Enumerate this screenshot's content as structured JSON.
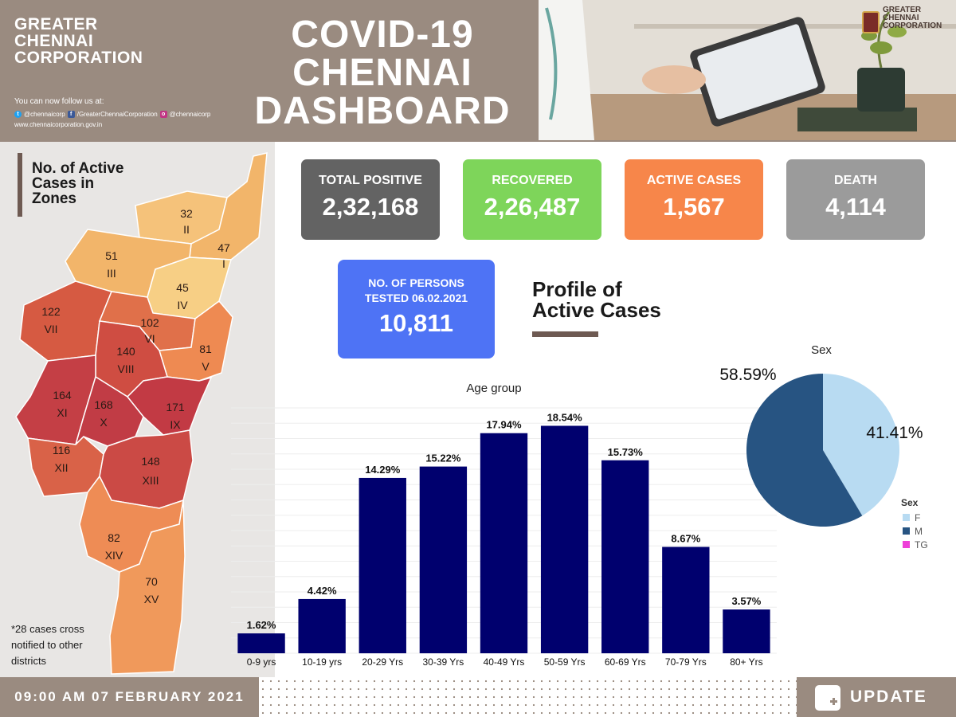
{
  "header": {
    "brand": "GREATER\nCHENNAI\nCORPORATION",
    "follow_text": "You can now follow us at:",
    "twitter": "@chennaicorp",
    "facebook": "/GreaterChennaiCorporation",
    "instagram": "@chennaicorp",
    "website": "www.chennaicorporation.gov.in",
    "title": "COVID-19\nCHENNAI\nDASHBOARD",
    "logo_text": "GREATER\nCHENNAI\nCORPORATION"
  },
  "map": {
    "title": "No. of Active\nCases in\nZones",
    "footnote": "*28 cases cross\nnotified to other\ndistricts",
    "zones": [
      {
        "roman": "I",
        "cases": "47",
        "color": "#f2b56a"
      },
      {
        "roman": "II",
        "cases": "32",
        "color": "#f5c27a"
      },
      {
        "roman": "III",
        "cases": "51",
        "color": "#f2b56a"
      },
      {
        "roman": "IV",
        "cases": "45",
        "color": "#f7cf85"
      },
      {
        "roman": "V",
        "cases": "81",
        "color": "#ee8a52"
      },
      {
        "roman": "VI",
        "cases": "102",
        "color": "#e0704a"
      },
      {
        "roman": "VII",
        "cases": "122",
        "color": "#d65a42"
      },
      {
        "roman": "VIII",
        "cases": "140",
        "color": "#cf4d42"
      },
      {
        "roman": "IX",
        "cases": "171",
        "color": "#c23a44"
      },
      {
        "roman": "X",
        "cases": "168",
        "color": "#c13c45"
      },
      {
        "roman": "XI",
        "cases": "164",
        "color": "#c43f45"
      },
      {
        "roman": "XII",
        "cases": "116",
        "color": "#d96248"
      },
      {
        "roman": "XIII",
        "cases": "148",
        "color": "#cb4a45"
      },
      {
        "roman": "XIV",
        "cases": "82",
        "color": "#ee8c55"
      },
      {
        "roman": "XV",
        "cases": "70",
        "color": "#f0995b"
      }
    ]
  },
  "stats": {
    "total_positive": {
      "label": "TOTAL POSITIVE",
      "value": "2,32,168"
    },
    "recovered": {
      "label": "RECOVERED",
      "value": "2,26,487"
    },
    "active": {
      "label": "ACTIVE CASES",
      "value": "1,567"
    },
    "death": {
      "label": "DEATH",
      "value": "4,114"
    },
    "tested": {
      "label": "NO. OF PERSONS\nTESTED 06.02.2021",
      "value": "10,811"
    }
  },
  "profile_title": "Profile of\nActive Cases",
  "chart_data": [
    {
      "type": "bar",
      "title": "Age group",
      "categories": [
        "0-9 yrs",
        "10-19 yrs",
        "20-29 Yrs",
        "30-39 Yrs",
        "40-49 Yrs",
        "50-59 Yrs",
        "60-69 Yrs",
        "70-79 Yrs",
        "80+ Yrs"
      ],
      "values": [
        1.62,
        4.42,
        14.29,
        15.22,
        17.94,
        18.54,
        15.73,
        8.67,
        3.57
      ],
      "value_labels": [
        "1.62%",
        "4.42%",
        "14.29%",
        "15.22%",
        "17.94%",
        "18.54%",
        "15.73%",
        "8.67%",
        "3.57%"
      ],
      "ylim": [
        0,
        20
      ],
      "grid": true,
      "color": "#00006e"
    },
    {
      "type": "pie",
      "title": "Sex",
      "labels": [
        "F",
        "M"
      ],
      "values": [
        41.41,
        58.59
      ],
      "value_labels": [
        "41.41%",
        "58.59%"
      ],
      "colors": [
        "#b8dbf2",
        "#275482"
      ],
      "legend": {
        "title": "Sex",
        "entries": [
          {
            "label": "F",
            "color": "#b8dbf2"
          },
          {
            "label": "M",
            "color": "#275482"
          },
          {
            "label": "TG",
            "color": "#ee40d8"
          }
        ],
        "position": "bottom-right"
      }
    }
  ],
  "footer": {
    "datetime": "09:00 AM 07 FEBRUARY 2021",
    "update": "UPDATE"
  }
}
